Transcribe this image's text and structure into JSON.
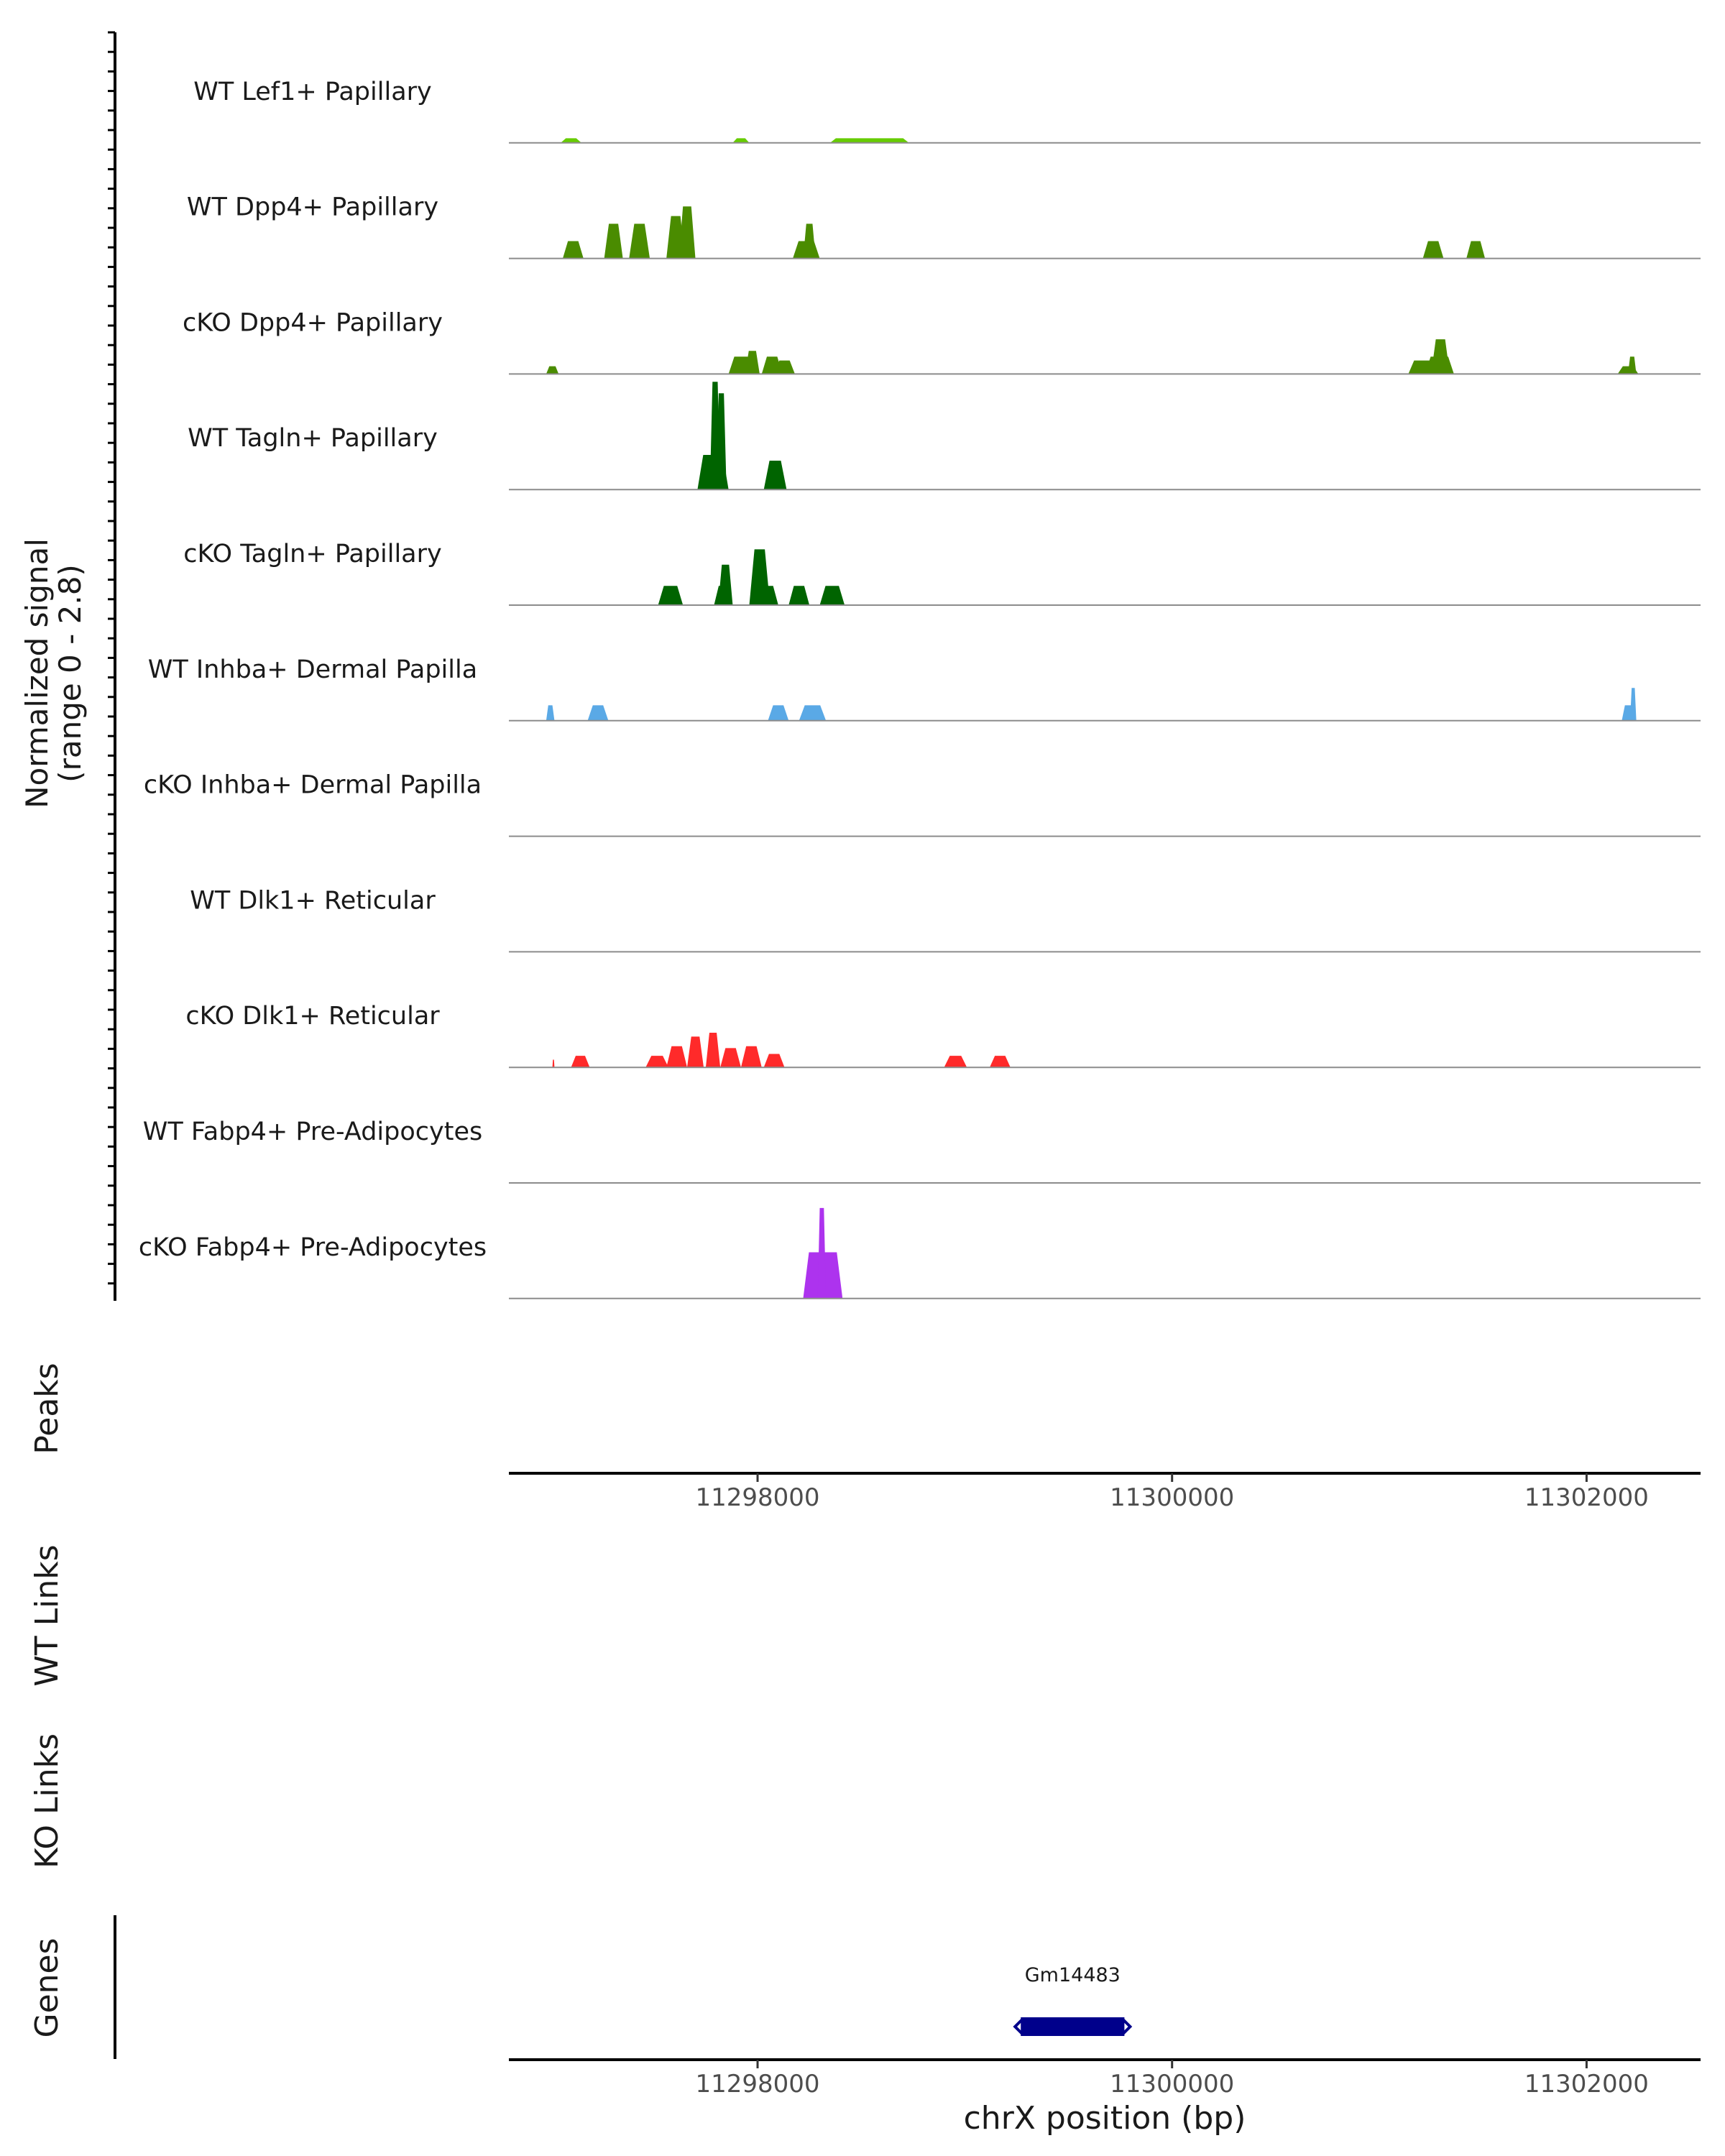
{
  "chart_data": {
    "type": "area",
    "title": "",
    "xlabel": "chrX position (bp)",
    "ylabel": "Normalized signal",
    "ylabel_range": "(range 0 - 2.8)",
    "xlim": [
      11296800,
      11302550
    ],
    "ylim": [
      0,
      2.8
    ],
    "x_ticks": [
      11298000,
      11300000,
      11302000
    ],
    "x_tick_labels": [
      "11298000",
      "11300000",
      "11302000"
    ],
    "panel_labels": {
      "peaks": "Peaks",
      "wt_links": "WT Links",
      "ko_links": "KO Links",
      "genes": "Genes"
    },
    "tracks": [
      {
        "name": "WT Lef1+ Papillary",
        "color": "#66cc00",
        "peaks": [
          [
            11297050,
            11297150,
            0.12
          ],
          [
            11297880,
            11297960,
            0.12
          ],
          [
            11298350,
            11298730,
            0.12
          ]
        ]
      },
      {
        "name": "WT Dpp4+ Papillary",
        "color": "#4a8c00",
        "peaks": [
          [
            11297060,
            11297160,
            0.45
          ],
          [
            11297260,
            11297350,
            0.9
          ],
          [
            11297380,
            11297480,
            0.9
          ],
          [
            11297560,
            11297650,
            1.1
          ],
          [
            11297620,
            11297700,
            1.35
          ],
          [
            11298170,
            11298300,
            0.45
          ],
          [
            11298220,
            11298280,
            0.9
          ],
          [
            11301210,
            11301310,
            0.45
          ],
          [
            11301420,
            11301510,
            0.45
          ]
        ]
      },
      {
        "name": "cKO Dpp4+ Papillary",
        "color": "#4a8c00",
        "peaks": [
          [
            11296980,
            11297040,
            0.2
          ],
          [
            11297860,
            11297980,
            0.45
          ],
          [
            11297940,
            11298010,
            0.6
          ],
          [
            11298020,
            11298120,
            0.45
          ],
          [
            11298080,
            11298180,
            0.35
          ],
          [
            11301140,
            11301330,
            0.35
          ],
          [
            11301250,
            11301340,
            0.9
          ],
          [
            11301220,
            11301360,
            0.45
          ],
          [
            11302150,
            11302250,
            0.2
          ],
          [
            11302200,
            11302240,
            0.45
          ]
        ]
      },
      {
        "name": "WT Tagln+ Papillary",
        "color": "#006400",
        "peaks": [
          [
            11297710,
            11297860,
            0.9
          ],
          [
            11297770,
            11297820,
            2.8
          ],
          [
            11297800,
            11297850,
            2.5
          ],
          [
            11298030,
            11298140,
            0.75
          ]
        ]
      },
      {
        "name": "cKO Tagln+ Papillary",
        "color": "#006400",
        "peaks": [
          [
            11297520,
            11297640,
            0.5
          ],
          [
            11297790,
            11297880,
            0.5
          ],
          [
            11297810,
            11297880,
            1.05
          ],
          [
            11297960,
            11298060,
            1.45
          ],
          [
            11298000,
            11298100,
            0.5
          ],
          [
            11298150,
            11298250,
            0.5
          ],
          [
            11298300,
            11298420,
            0.5
          ]
        ]
      },
      {
        "name": "WT Inhba+ Dermal Papilla",
        "color": "#5aa9e6",
        "peaks": [
          [
            11296980,
            11297020,
            0.4
          ],
          [
            11297180,
            11297280,
            0.4
          ],
          [
            11298050,
            11298150,
            0.4
          ],
          [
            11298200,
            11298330,
            0.4
          ],
          [
            11302170,
            11302230,
            0.4
          ],
          [
            11302210,
            11302240,
            0.85
          ]
        ]
      },
      {
        "name": "cKO Inhba+ Dermal Papilla",
        "color": "#5aa9e6",
        "peaks": []
      },
      {
        "name": "WT Dlk1+ Reticular",
        "color": "#ff2a2a",
        "peaks": []
      },
      {
        "name": "cKO Dlk1+ Reticular",
        "color": "#ff2a2a",
        "peaks": [
          [
            11297010,
            11297020,
            0.2
          ],
          [
            11297100,
            11297190,
            0.3
          ],
          [
            11297460,
            11297570,
            0.3
          ],
          [
            11297560,
            11297660,
            0.55
          ],
          [
            11297660,
            11297740,
            0.8
          ],
          [
            11297750,
            11297820,
            0.9
          ],
          [
            11297820,
            11297920,
            0.5
          ],
          [
            11297920,
            11298020,
            0.55
          ],
          [
            11298030,
            11298130,
            0.35
          ],
          [
            11298900,
            11299010,
            0.3
          ],
          [
            11299120,
            11299220,
            0.3
          ]
        ]
      },
      {
        "name": "WT Fabp4+ Pre-Adipocytes",
        "color": "#ad33ee",
        "peaks": []
      },
      {
        "name": "cKO Fabp4+ Pre-Adipocytes",
        "color": "#ad33ee",
        "peaks": [
          [
            11298220,
            11298410,
            1.2
          ],
          [
            11298290,
            11298330,
            2.35
          ]
        ]
      }
    ],
    "genes": [
      {
        "name": "Gm14483",
        "start": 11299270,
        "end": 11299770,
        "strand": "-",
        "color": "#00008b"
      }
    ]
  }
}
